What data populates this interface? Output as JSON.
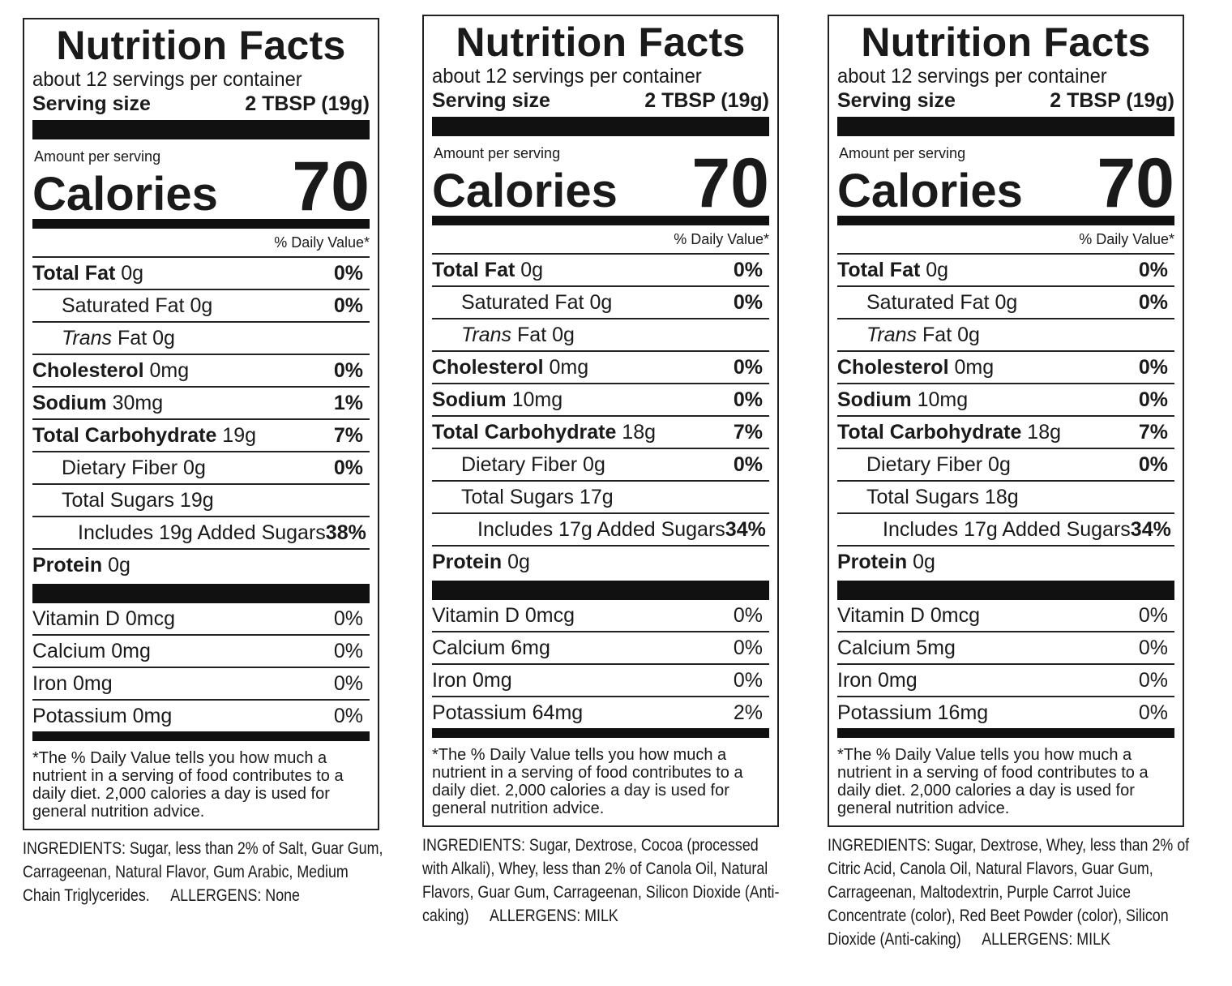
{
  "panels": [
    {
      "title": "Nutrition Facts",
      "servings": "about 12 servings per container",
      "serving_size_label": "Serving size",
      "serving_size": "2 TBSP (19g)",
      "amount_label": "Amount per serving",
      "calories_label": "Calories",
      "calories": "70",
      "dv_header": "% Daily Value*",
      "rows": [
        {
          "label": "Total Fat",
          "amount": "0g",
          "dv": "0%"
        },
        {
          "label": "Saturated Fat",
          "amount": "0g",
          "dv": "0%"
        },
        {
          "label": "Trans",
          "amount": "Fat 0g"
        },
        {
          "label": "Cholesterol",
          "amount": "0mg",
          "dv": "0%"
        },
        {
          "label": "Sodium",
          "amount": "30mg",
          "dv": "1%"
        },
        {
          "label": "Total Carbohydrate",
          "amount": "19g",
          "dv": "7%"
        },
        {
          "label": "Dietary Fiber",
          "amount": "0g",
          "dv": "0%"
        },
        {
          "label": "Total Sugars",
          "amount": "19g"
        },
        {
          "label": "Includes 19g Added Sugars",
          "dv": "38%"
        },
        {
          "label": "Protein",
          "amount": "0g"
        }
      ],
      "vitamins": [
        {
          "name": "Vitamin D 0mcg",
          "dv": "0%"
        },
        {
          "name": "Calcium 0mg",
          "dv": "0%"
        },
        {
          "name": "Iron 0mg",
          "dv": "0%"
        },
        {
          "name": "Potassium 0mg",
          "dv": "0%"
        }
      ],
      "footnote": "*The % Daily Value tells you how much a nutrient in a serving of food contributes to a daily diet. 2,000 calories a day is used for general nutrition advice.",
      "ingredients": "INGREDIENTS: Sugar, less than 2% of Salt, Guar Gum, Carrageenan, Natural Flavor, Gum Arabic, Medium Chain Triglycerides.",
      "allergens": "ALLERGENS: None"
    },
    {
      "title": "Nutrition Facts",
      "servings": "about 12 servings per container",
      "serving_size_label": "Serving size",
      "serving_size": "2 TBSP (19g)",
      "amount_label": "Amount per serving",
      "calories_label": "Calories",
      "calories": "70",
      "dv_header": "% Daily Value*",
      "rows": [
        {
          "label": "Total Fat",
          "amount": "0g",
          "dv": "0%"
        },
        {
          "label": "Saturated Fat",
          "amount": "0g",
          "dv": "0%"
        },
        {
          "label": "Trans",
          "amount": "Fat 0g"
        },
        {
          "label": "Cholesterol",
          "amount": "0mg",
          "dv": "0%"
        },
        {
          "label": "Sodium",
          "amount": "10mg",
          "dv": "0%"
        },
        {
          "label": "Total Carbohydrate",
          "amount": "18g",
          "dv": "7%"
        },
        {
          "label": "Dietary Fiber",
          "amount": "0g",
          "dv": "0%"
        },
        {
          "label": "Total Sugars",
          "amount": "17g"
        },
        {
          "label": "Includes 17g Added Sugars",
          "dv": "34%"
        },
        {
          "label": "Protein",
          "amount": "0g"
        }
      ],
      "vitamins": [
        {
          "name": "Vitamin D 0mcg",
          "dv": "0%"
        },
        {
          "name": "Calcium 6mg",
          "dv": "0%"
        },
        {
          "name": "Iron 0mg",
          "dv": "0%"
        },
        {
          "name": "Potassium 64mg",
          "dv": "2%"
        }
      ],
      "footnote": "*The % Daily Value tells you how much a nutrient in a serving of food contributes to a daily diet. 2,000 calories a day is used for general nutrition advice.",
      "ingredients": "INGREDIENTS: Sugar, Dextrose, Cocoa (processed with Alkali), Whey, less than 2% of Canola Oil, Natural Flavors, Guar Gum, Carrageenan, Silicon Dioxide (Anti-caking)",
      "allergens": "ALLERGENS: MILK"
    },
    {
      "title": "Nutrition Facts",
      "servings": "about 12 servings per container",
      "serving_size_label": "Serving size",
      "serving_size": "2 TBSP (19g)",
      "amount_label": "Amount per serving",
      "calories_label": "Calories",
      "calories": "70",
      "dv_header": "% Daily Value*",
      "rows": [
        {
          "label": "Total Fat",
          "amount": "0g",
          "dv": "0%"
        },
        {
          "label": "Saturated Fat",
          "amount": "0g",
          "dv": "0%"
        },
        {
          "label": "Trans",
          "amount": "Fat 0g"
        },
        {
          "label": "Cholesterol",
          "amount": "0mg",
          "dv": "0%"
        },
        {
          "label": "Sodium",
          "amount": "10mg",
          "dv": "0%"
        },
        {
          "label": "Total Carbohydrate",
          "amount": "18g",
          "dv": "7%"
        },
        {
          "label": "Dietary Fiber",
          "amount": "0g",
          "dv": "0%"
        },
        {
          "label": "Total Sugars",
          "amount": "18g"
        },
        {
          "label": "Includes 17g Added Sugars",
          "dv": "34%"
        },
        {
          "label": "Protein",
          "amount": "0g"
        }
      ],
      "vitamins": [
        {
          "name": "Vitamin D 0mcg",
          "dv": "0%"
        },
        {
          "name": "Calcium 5mg",
          "dv": "0%"
        },
        {
          "name": "Iron 0mg",
          "dv": "0%"
        },
        {
          "name": "Potassium 16mg",
          "dv": "0%"
        }
      ],
      "footnote": "*The % Daily Value tells you how much a nutrient in a serving of food contributes to a daily diet. 2,000 calories a day is used for general nutrition advice.",
      "ingredients": "INGREDIENTS: Sugar, Dextrose, Whey, less than 2% of Citric Acid, Canola Oil, Natural Flavors, Guar Gum, Carrageenan, Maltodextrin, Purple Carrot Juice Concentrate (color), Red Beet Powder (color), Silicon Dioxide (Anti-caking)",
      "allergens": "ALLERGENS: MILK"
    }
  ]
}
